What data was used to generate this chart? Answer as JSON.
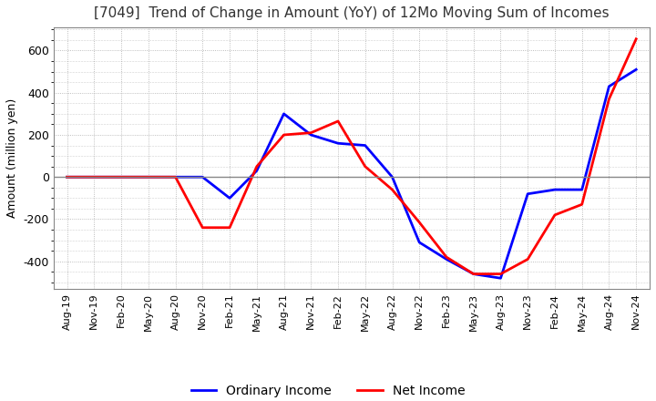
{
  "title": "[7049]  Trend of Change in Amount (YoY) of 12Mo Moving Sum of Incomes",
  "ylabel": "Amount (million yen)",
  "ylim": [
    -530,
    710
  ],
  "yticks": [
    -400,
    -200,
    0,
    200,
    400,
    600
  ],
  "background_color": "#ffffff",
  "plot_bg_color": "#ffffff",
  "grid_color": "#aaaaaa",
  "ordinary_income_color": "#0000ff",
  "net_income_color": "#ff0000",
  "legend_labels": [
    "Ordinary Income",
    "Net Income"
  ],
  "x_labels": [
    "Aug-19",
    "Nov-19",
    "Feb-20",
    "May-20",
    "Aug-20",
    "Nov-20",
    "Feb-21",
    "May-21",
    "Aug-21",
    "Nov-21",
    "Feb-22",
    "May-22",
    "Aug-22",
    "Nov-22",
    "Feb-23",
    "May-23",
    "Aug-23",
    "Nov-23",
    "Feb-24",
    "May-24",
    "Aug-24",
    "Nov-24"
  ],
  "ordinary_income": [
    0,
    0,
    0,
    0,
    0,
    0,
    -100,
    30,
    300,
    200,
    160,
    150,
    0,
    -310,
    -390,
    -460,
    -480,
    -80,
    -60,
    -60,
    430,
    510
  ],
  "net_income": [
    0,
    0,
    0,
    0,
    0,
    -240,
    -240,
    50,
    200,
    210,
    265,
    50,
    -60,
    -215,
    -380,
    -460,
    -460,
    -390,
    -180,
    -130,
    370,
    655
  ]
}
